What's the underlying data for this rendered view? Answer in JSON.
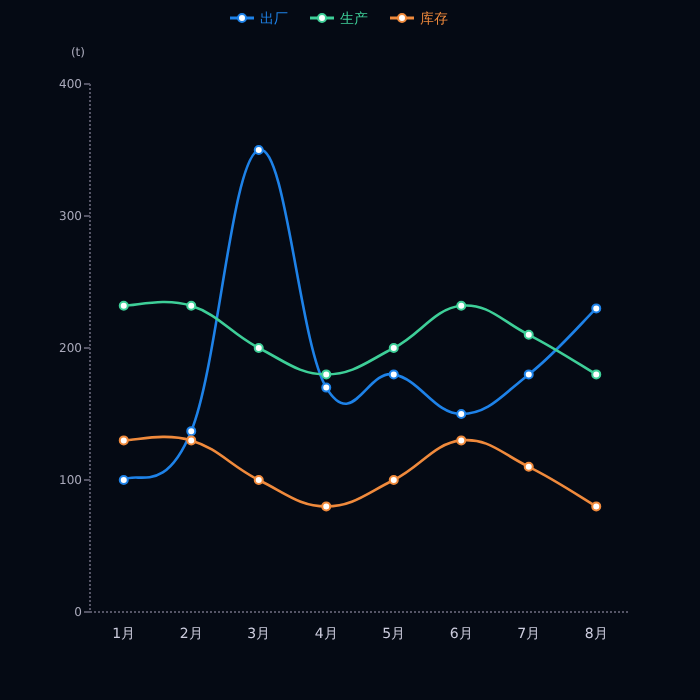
{
  "chart_data": {
    "type": "line",
    "ylabel": "(t)",
    "categories": [
      "1月",
      "2月",
      "3月",
      "4月",
      "5月",
      "6月",
      "7月",
      "8月"
    ],
    "ylim": [
      0,
      400
    ],
    "yticks": [
      0,
      100,
      200,
      300,
      400
    ],
    "legend": "top",
    "marker": "circle",
    "line_style": "solid",
    "grid": false,
    "series": [
      {
        "name": "出厂",
        "color": "#1e82e8",
        "values": [
          100,
          137,
          350,
          170,
          180,
          150,
          180,
          230
        ]
      },
      {
        "name": "生产",
        "color": "#3ecf98",
        "values": [
          232,
          232,
          200,
          180,
          200,
          232,
          210,
          180
        ]
      },
      {
        "name": "库存",
        "color": "#f08a3c",
        "values": [
          130,
          130,
          100,
          80,
          100,
          130,
          110,
          80
        ]
      }
    ]
  }
}
